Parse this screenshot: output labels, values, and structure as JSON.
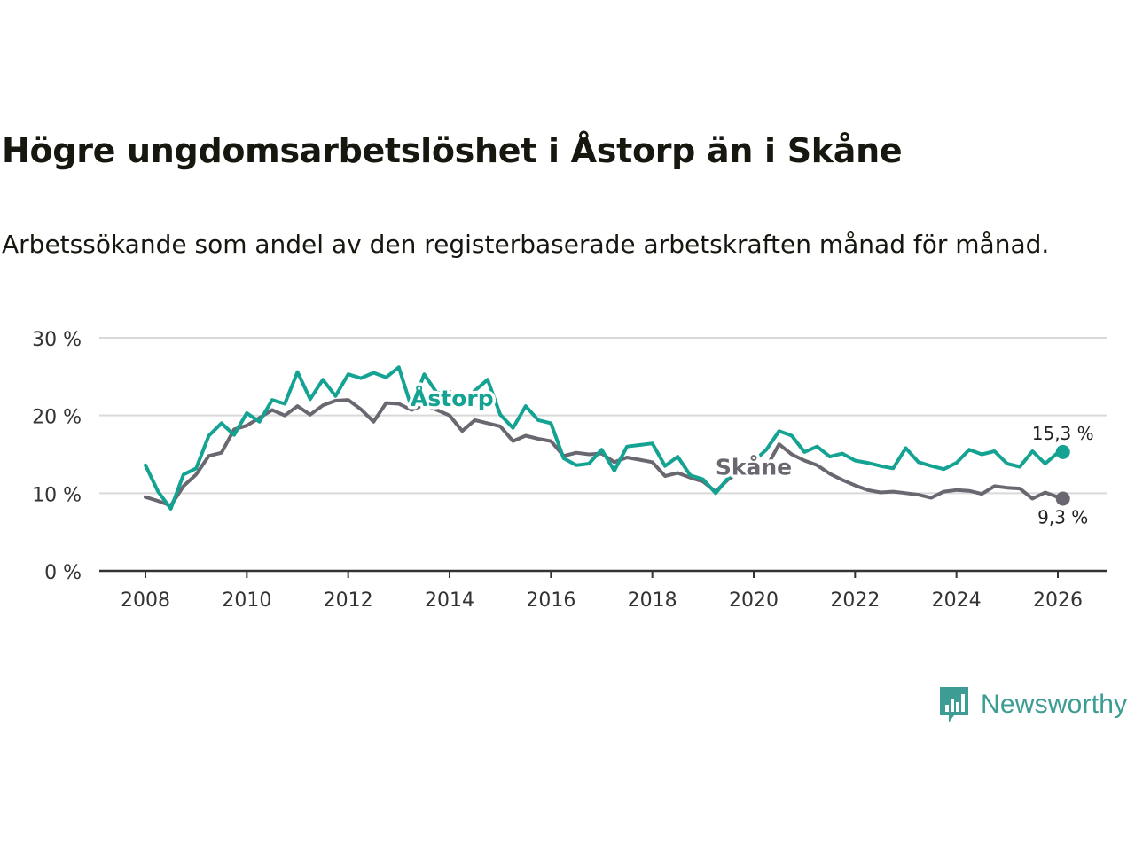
{
  "header": {
    "title": "Högre ungdomsarbetslöshet i Åstorp än i Skåne",
    "subtitle": "Arbetssökande som andel av den registerbaserade arbetskraften månad för månad."
  },
  "brand": {
    "name": "Newsworthy",
    "icon": "newsworthy-logo-icon",
    "color": "#3d9d94"
  },
  "colors": {
    "astorp": "#14a393",
    "skane": "#6b6770",
    "grid": "#d9d9d9",
    "axis": "#333333"
  },
  "chart_data": {
    "type": "line",
    "title": "Högre ungdomsarbetslöshet i Åstorp än i Skåne",
    "subtitle": "Arbetssökande som andel av den registerbaserade arbetskraften månad för månad.",
    "xlabel": "",
    "ylabel": "",
    "xlim": [
      2007.5,
      2027
    ],
    "ylim": [
      0,
      30
    ],
    "y_ticks": [
      0,
      10,
      20,
      30
    ],
    "y_tick_labels": [
      "0 %",
      "10 %",
      "20 %",
      "30 %"
    ],
    "x_ticks": [
      2008,
      2010,
      2012,
      2014,
      2016,
      2018,
      2020,
      2022,
      2024,
      2026
    ],
    "x_tick_labels": [
      "2008",
      "2010",
      "2012",
      "2014",
      "2016",
      "2018",
      "2020",
      "2022",
      "2024",
      "2026"
    ],
    "grid": true,
    "series": [
      {
        "name": "Åstorp",
        "end_label": "15,3 %",
        "x": [
          2008.0,
          2008.25,
          2008.5,
          2008.75,
          2009.0,
          2009.25,
          2009.5,
          2009.75,
          2010.0,
          2010.25,
          2010.5,
          2010.75,
          2011.0,
          2011.25,
          2011.5,
          2011.75,
          2012.0,
          2012.25,
          2012.5,
          2012.75,
          2013.0,
          2013.25,
          2013.5,
          2013.75,
          2014.0,
          2014.25,
          2014.5,
          2014.75,
          2015.0,
          2015.25,
          2015.5,
          2015.75,
          2016.0,
          2016.25,
          2016.5,
          2016.75,
          2017.0,
          2017.25,
          2017.5,
          2017.75,
          2018.0,
          2018.25,
          2018.5,
          2018.75,
          2019.0,
          2019.25,
          2019.5,
          2019.75,
          2020.0,
          2020.25,
          2020.5,
          2020.75,
          2021.0,
          2021.25,
          2021.5,
          2021.75,
          2022.0,
          2022.25,
          2022.5,
          2022.75,
          2023.0,
          2023.25,
          2023.5,
          2023.75,
          2024.0,
          2024.25,
          2024.5,
          2024.75,
          2025.0,
          2025.25,
          2025.5,
          2025.75,
          2026.0,
          2026.1
        ],
        "y": [
          13.6,
          10.2,
          8.0,
          12.4,
          13.2,
          17.4,
          19.0,
          17.5,
          20.3,
          19.2,
          22.0,
          21.5,
          25.6,
          22.1,
          24.6,
          22.5,
          25.3,
          24.8,
          25.5,
          24.9,
          26.2,
          21.0,
          25.3,
          22.9,
          23.1,
          21.5,
          23.2,
          24.6,
          20.1,
          18.4,
          21.2,
          19.4,
          19.0,
          14.5,
          13.6,
          13.8,
          15.6,
          12.9,
          16.0,
          16.2,
          16.4,
          13.5,
          14.7,
          12.3,
          11.8,
          10.0,
          12.0,
          13.5,
          14.1,
          15.6,
          18.0,
          17.4,
          15.3,
          16.0,
          14.7,
          15.1,
          14.2,
          13.9,
          13.5,
          13.2,
          15.8,
          14.0,
          13.5,
          13.1,
          13.9,
          15.6,
          15.0,
          15.4,
          13.8,
          13.4,
          15.4,
          13.8,
          15.2,
          15.3
        ]
      },
      {
        "name": "Skåne",
        "end_label": "9,3 %",
        "x": [
          2008.0,
          2008.25,
          2008.5,
          2008.75,
          2009.0,
          2009.25,
          2009.5,
          2009.75,
          2010.0,
          2010.25,
          2010.5,
          2010.75,
          2011.0,
          2011.25,
          2011.5,
          2011.75,
          2012.0,
          2012.25,
          2012.5,
          2012.75,
          2013.0,
          2013.25,
          2013.5,
          2013.75,
          2014.0,
          2014.25,
          2014.5,
          2014.75,
          2015.0,
          2015.25,
          2015.5,
          2015.75,
          2016.0,
          2016.25,
          2016.5,
          2016.75,
          2017.0,
          2017.25,
          2017.5,
          2017.75,
          2018.0,
          2018.25,
          2018.5,
          2018.75,
          2019.0,
          2019.25,
          2019.5,
          2019.75,
          2020.0,
          2020.25,
          2020.5,
          2020.75,
          2021.0,
          2021.25,
          2021.5,
          2021.75,
          2022.0,
          2022.25,
          2022.5,
          2022.75,
          2023.0,
          2023.25,
          2023.5,
          2023.75,
          2024.0,
          2024.25,
          2024.5,
          2024.75,
          2025.0,
          2025.25,
          2025.5,
          2025.75,
          2026.0,
          2026.1
        ],
        "y": [
          9.5,
          9.0,
          8.4,
          10.9,
          12.4,
          14.8,
          15.2,
          18.2,
          18.7,
          19.7,
          20.7,
          20.0,
          21.2,
          20.1,
          21.3,
          21.9,
          22.0,
          20.8,
          19.2,
          21.6,
          21.5,
          20.7,
          21.4,
          20.7,
          20.0,
          18.0,
          19.4,
          19.0,
          18.6,
          16.7,
          17.4,
          17.0,
          16.7,
          14.8,
          15.2,
          15.0,
          15.1,
          14.0,
          14.6,
          14.3,
          14.0,
          12.2,
          12.6,
          12.0,
          11.5,
          10.2,
          11.8,
          12.8,
          13.2,
          13.3,
          16.3,
          15.0,
          14.2,
          13.6,
          12.5,
          11.7,
          11.0,
          10.4,
          10.1,
          10.2,
          10.0,
          9.8,
          9.4,
          10.2,
          10.4,
          10.3,
          9.9,
          10.9,
          10.7,
          10.6,
          9.3,
          10.1,
          9.5,
          9.3
        ]
      }
    ],
    "annotations": [
      {
        "text": "Åstorp",
        "series": "Åstorp",
        "x": 2014.05,
        "y": 21.2
      },
      {
        "text": "Skåne",
        "series": "Skåne",
        "x": 2020.0,
        "y": 12.4
      }
    ]
  }
}
